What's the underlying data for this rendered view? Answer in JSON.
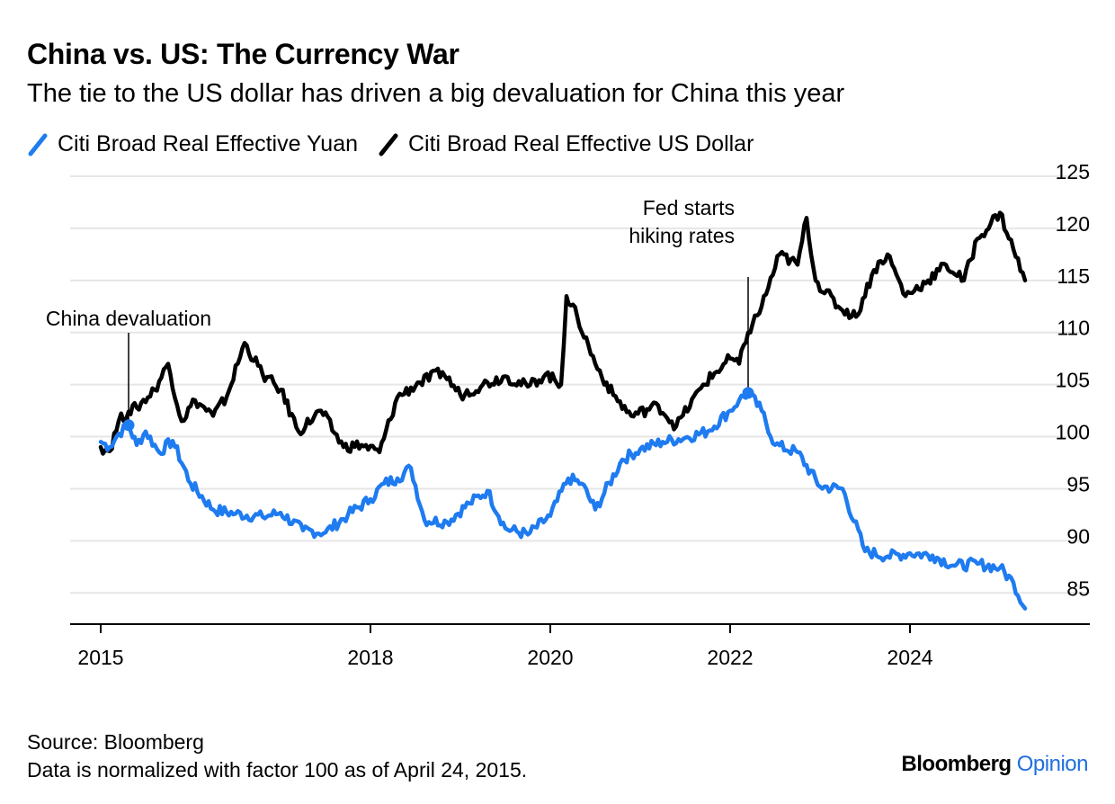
{
  "chart_data": {
    "type": "line",
    "title": "China vs. US: The Currency War",
    "subtitle": "The tie to the US dollar has driven a big devaluation for China this year",
    "xlabel": "",
    "ylabel": "",
    "ylim": [
      82,
      125
    ],
    "y_ticks": [
      85,
      90,
      95,
      100,
      105,
      110,
      115,
      120,
      125
    ],
    "x_ticks": [
      {
        "value": 2015,
        "label": "2015"
      },
      {
        "value": 2018,
        "label": "2018"
      },
      {
        "value": 2020,
        "label": "2020"
      },
      {
        "value": 2022,
        "label": "2022"
      },
      {
        "value": 2024,
        "label": "2024"
      }
    ],
    "xlim": [
      2014.66,
      2026.0
    ],
    "grid": true,
    "legend_position": "top-left",
    "series": [
      {
        "name": "Citi Broad Real Effective Yuan",
        "color": "#1e7bf0",
        "x": [
          2015.0,
          2015.1,
          2015.2,
          2015.31,
          2015.4,
          2015.5,
          2015.65,
          2015.8,
          2016.0,
          2016.25,
          2016.5,
          2016.8,
          2017.0,
          2017.25,
          2017.5,
          2017.75,
          2018.0,
          2018.15,
          2018.3,
          2018.45,
          2018.6,
          2018.85,
          2019.1,
          2019.3,
          2019.5,
          2019.75,
          2020.0,
          2020.2,
          2020.35,
          2020.5,
          2020.8,
          2021.0,
          2021.25,
          2021.5,
          2021.75,
          2022.0,
          2022.1,
          2022.2,
          2022.35,
          2022.5,
          2022.75,
          2023.0,
          2023.25,
          2023.5,
          2023.75,
          2024.0,
          2024.25,
          2024.5,
          2024.75,
          2025.0,
          2025.15,
          2025.28
        ],
        "values": [
          99.5,
          99.0,
          100.3,
          101.1,
          99.2,
          100.5,
          98.5,
          99.6,
          95.5,
          93.0,
          92.6,
          92.3,
          92.7,
          91.0,
          90.8,
          92.5,
          94.0,
          95.5,
          96.0,
          97.0,
          92.0,
          91.8,
          93.6,
          94.8,
          91.2,
          90.6,
          92.4,
          96.0,
          95.5,
          93.0,
          97.8,
          98.8,
          99.5,
          99.9,
          100.5,
          102.5,
          103.5,
          104.2,
          102.5,
          99.2,
          98.5,
          95.2,
          95.0,
          89.0,
          88.5,
          88.8,
          88.6,
          87.6,
          87.8,
          87.4,
          86.0,
          83.5
        ]
      },
      {
        "name": "Citi Broad Real Effective US Dollar",
        "color": "#000000",
        "x": [
          2015.0,
          2015.1,
          2015.2,
          2015.31,
          2015.4,
          2015.6,
          2015.75,
          2015.9,
          2016.05,
          2016.25,
          2016.4,
          2016.6,
          2016.8,
          2017.0,
          2017.2,
          2017.45,
          2017.7,
          2017.9,
          2018.1,
          2018.3,
          2018.55,
          2018.8,
          2019.0,
          2019.25,
          2019.5,
          2019.75,
          2019.95,
          2020.12,
          2020.18,
          2020.3,
          2020.5,
          2020.7,
          2020.9,
          2021.2,
          2021.4,
          2021.7,
          2022.0,
          2022.1,
          2022.2,
          2022.35,
          2022.55,
          2022.75,
          2022.85,
          2022.95,
          2023.2,
          2023.4,
          2023.6,
          2023.75,
          2023.95,
          2024.2,
          2024.4,
          2024.6,
          2024.75,
          2024.9,
          2025.0,
          2025.15,
          2025.28
        ],
        "values": [
          99.0,
          98.6,
          101.5,
          102.4,
          102.8,
          104.5,
          107.0,
          101.5,
          103.5,
          102.0,
          103.8,
          109.0,
          106.0,
          104.5,
          100.5,
          102.5,
          99.0,
          99.2,
          98.5,
          103.8,
          105.2,
          106.2,
          104.0,
          105.0,
          105.8,
          104.8,
          106.0,
          105.0,
          113.5,
          111.5,
          107.0,
          104.0,
          102.0,
          103.0,
          101.0,
          105.0,
          107.5,
          107.0,
          110.0,
          112.5,
          117.5,
          116.5,
          121.0,
          115.0,
          112.5,
          111.5,
          116.0,
          117.5,
          113.5,
          115.0,
          116.5,
          115.0,
          119.0,
          120.5,
          121.5,
          118.0,
          115.0
        ]
      }
    ],
    "annotations": [
      {
        "text": "China devaluation",
        "x": 2015.31,
        "y": 101.1,
        "series": "Citi Broad Real Effective Yuan"
      },
      {
        "text": "Fed starts hiking rates",
        "lines": [
          "Fed starts",
          "hiking rates"
        ],
        "x": 2022.2,
        "y": 104.2,
        "series": "Citi Broad Real Effective Yuan"
      }
    ]
  },
  "footer": {
    "source": "Source: Bloomberg",
    "note": "Data is normalized with factor 100 as of April 24, 2015.",
    "brand_main": "Bloomberg",
    "brand_sub": "Opinion"
  }
}
